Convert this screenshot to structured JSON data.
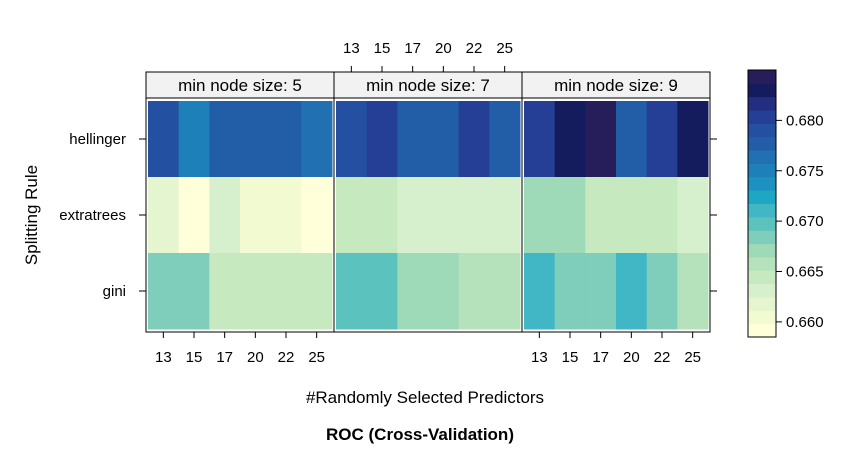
{
  "chart_data": {
    "type": "heatmap",
    "title": "ROC (Cross-Validation)",
    "xlabel": "#Randomly Selected Predictors",
    "ylabel": "Splitting Rule",
    "x": [
      13,
      15,
      17,
      20,
      22,
      25
    ],
    "x_tick_labels": [
      "13",
      "15",
      "17",
      "20",
      "22",
      "25"
    ],
    "rows": [
      "hellinger",
      "extratrees",
      "gini"
    ],
    "panels": [
      {
        "label": "min node size: 5",
        "values": [
          [
            0.6785,
            0.6755,
            0.678,
            0.678,
            0.678,
            0.677
          ],
          [
            0.6615,
            0.6595,
            0.6625,
            0.6605,
            0.6605,
            0.659
          ],
          [
            0.668,
            0.668,
            0.6645,
            0.6645,
            0.6645,
            0.6645
          ]
        ]
      },
      {
        "label": "min node size: 7",
        "values": [
          [
            0.679,
            0.6805,
            0.678,
            0.678,
            0.6805,
            0.678
          ],
          [
            0.664,
            0.664,
            0.6625,
            0.6625,
            0.6625,
            0.6625
          ],
          [
            0.6695,
            0.6695,
            0.667,
            0.667,
            0.666,
            0.666
          ]
        ]
      },
      {
        "label": "min node size: 9",
        "values": [
          [
            0.681,
            0.6825,
            0.6845,
            0.678,
            0.681,
            0.6825
          ],
          [
            0.6675,
            0.6675,
            0.6645,
            0.6645,
            0.665,
            0.6625
          ],
          [
            0.6705,
            0.6685,
            0.6685,
            0.6705,
            0.668,
            0.666
          ]
        ]
      }
    ],
    "colorbar": {
      "ticks": [
        "0.660",
        "0.665",
        "0.670",
        "0.675",
        "0.680"
      ],
      "tick_values": [
        0.66,
        0.665,
        0.67,
        0.675,
        0.68
      ],
      "range": [
        0.6585,
        0.685
      ],
      "colors": [
        "#ffffd9",
        "#f2fad1",
        "#e5f5cf",
        "#d6efcc",
        "#c7e9c0",
        "#b6e2bb",
        "#9ed9b8",
        "#7fcdbb",
        "#5cc2bd",
        "#41b6c4",
        "#1fa6c2",
        "#1d91c0",
        "#1d80b8",
        "#2170b1",
        "#225ea8",
        "#2350a0",
        "#253f96",
        "#222e80",
        "#151c5e",
        "#261e5a"
      ]
    },
    "grid": false,
    "legend": "right"
  }
}
